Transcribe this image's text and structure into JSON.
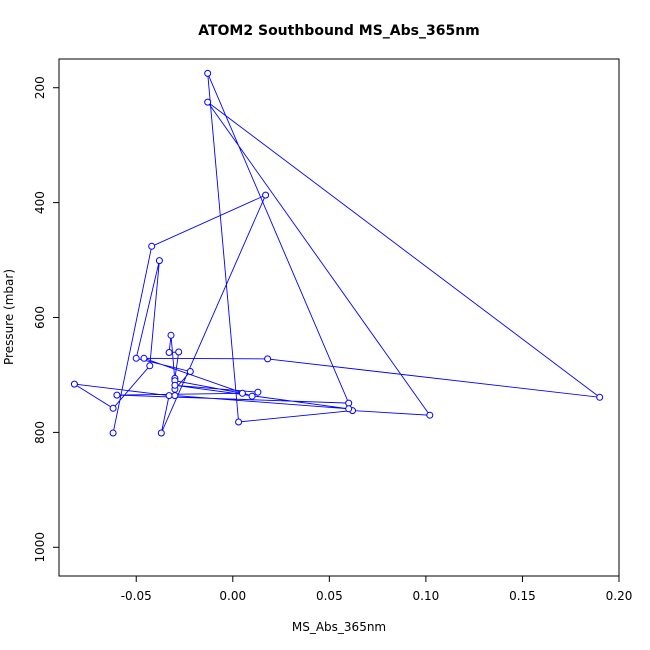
{
  "chart_data": {
    "type": "line",
    "title": "ATOM2 Southbound MS_Abs_365nm",
    "xlabel": "MS_Abs_365nm",
    "ylabel": "Pressure (mbar)",
    "xlim": [
      -0.09,
      0.2
    ],
    "ylim": [
      1050,
      150
    ],
    "y_reversed": true,
    "grid": false,
    "x_ticks": [
      -0.05,
      0.0,
      0.05,
      0.1,
      0.15,
      0.2
    ],
    "x_tick_labels": [
      "-0.05",
      "0.00",
      "0.05",
      "0.10",
      "0.15",
      "0.20"
    ],
    "y_ticks": [
      200,
      400,
      600,
      800,
      1000
    ],
    "y_tick_labels": [
      "200",
      "400",
      "600",
      "800",
      "1000"
    ],
    "color": "#0000ff",
    "series": [
      {
        "points": [
          [
            -0.062,
            801
          ],
          [
            -0.042,
            476
          ],
          [
            0.017,
            387
          ],
          [
            -0.037,
            801
          ],
          [
            -0.033,
            736
          ],
          [
            -0.082,
            716
          ],
          [
            -0.062,
            758
          ],
          [
            -0.043,
            684
          ],
          [
            -0.038,
            501
          ],
          [
            -0.05,
            671
          ],
          [
            -0.022,
            694
          ],
          [
            -0.03,
            725
          ],
          [
            -0.03,
            706
          ],
          [
            -0.028,
            660
          ],
          [
            -0.033,
            661
          ],
          [
            -0.032,
            631
          ],
          [
            -0.03,
            710
          ],
          [
            0.005,
            732
          ],
          [
            -0.06,
            735
          ],
          [
            0.06,
            749
          ],
          [
            -0.013,
            175
          ],
          [
            0.003,
            782
          ],
          [
            0.062,
            762
          ],
          [
            0.102,
            770
          ],
          [
            -0.013,
            225
          ],
          [
            0.19,
            739
          ],
          [
            0.018,
            672
          ],
          [
            -0.046,
            671
          ],
          [
            0.01,
            737
          ],
          [
            0.013,
            730
          ],
          [
            -0.03,
            718
          ],
          [
            0.06,
            759
          ],
          [
            -0.03,
            736
          ]
        ]
      }
    ]
  }
}
